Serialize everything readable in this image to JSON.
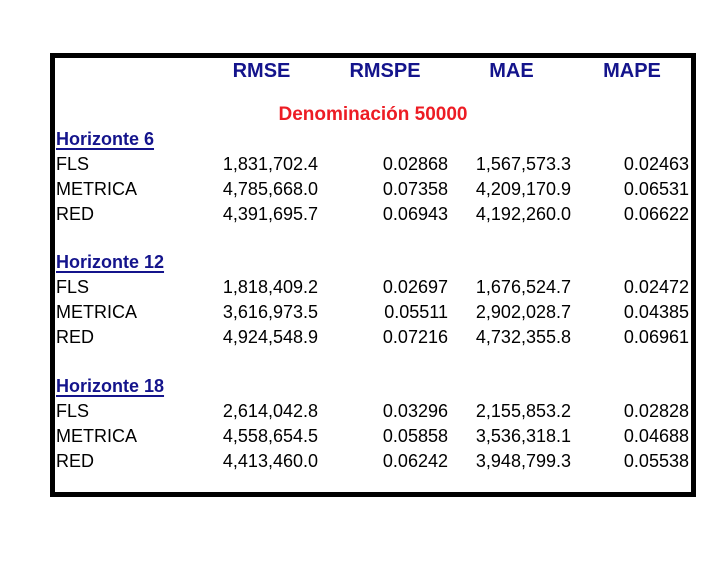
{
  "page": {
    "background": "#ffffff"
  },
  "colors": {
    "header_navy": "#14148c",
    "title_red": "#ed1c24",
    "text_black": "#000000",
    "border_black": "#000000"
  },
  "table": {
    "columns": [
      "RMSE",
      "RMSPE",
      "MAE",
      "MAPE"
    ],
    "title": "Denominación 50000",
    "sections": [
      {
        "heading": "Horizonte 6",
        "rows": [
          {
            "label": "FLS",
            "rmse": "1,831,702.4",
            "rmspe": "0.02868",
            "mae": "1,567,573.3",
            "mape": "0.02463"
          },
          {
            "label": "METRICA",
            "rmse": "4,785,668.0",
            "rmspe": "0.07358",
            "mae": "4,209,170.9",
            "mape": "0.06531"
          },
          {
            "label": "RED",
            "rmse": "4,391,695.7",
            "rmspe": "0.06943",
            "mae": "4,192,260.0",
            "mape": "0.06622"
          }
        ]
      },
      {
        "heading": "Horizonte 12",
        "rows": [
          {
            "label": "FLS",
            "rmse": "1,818,409.2",
            "rmspe": "0.02697",
            "mae": "1,676,524.7",
            "mape": "0.02472"
          },
          {
            "label": "METRICA",
            "rmse": "3,616,973.5",
            "rmspe": "0.05511",
            "mae": "2,902,028.7",
            "mape": "0.04385"
          },
          {
            "label": "RED",
            "rmse": "4,924,548.9",
            "rmspe": "0.07216",
            "mae": "4,732,355.8",
            "mape": "0.06961"
          }
        ]
      },
      {
        "heading": "Horizonte 18",
        "rows": [
          {
            "label": "FLS",
            "rmse": "2,614,042.8",
            "rmspe": "0.03296",
            "mae": "2,155,853.2",
            "mape": "0.02828"
          },
          {
            "label": "METRICA",
            "rmse": "4,558,654.5",
            "rmspe": "0.05858",
            "mae": "3,536,318.1",
            "mape": "0.04688"
          },
          {
            "label": "RED",
            "rmse": "4,413,460.0",
            "rmspe": "0.06242",
            "mae": "3,948,799.3",
            "mape": "0.05538"
          }
        ]
      }
    ]
  }
}
